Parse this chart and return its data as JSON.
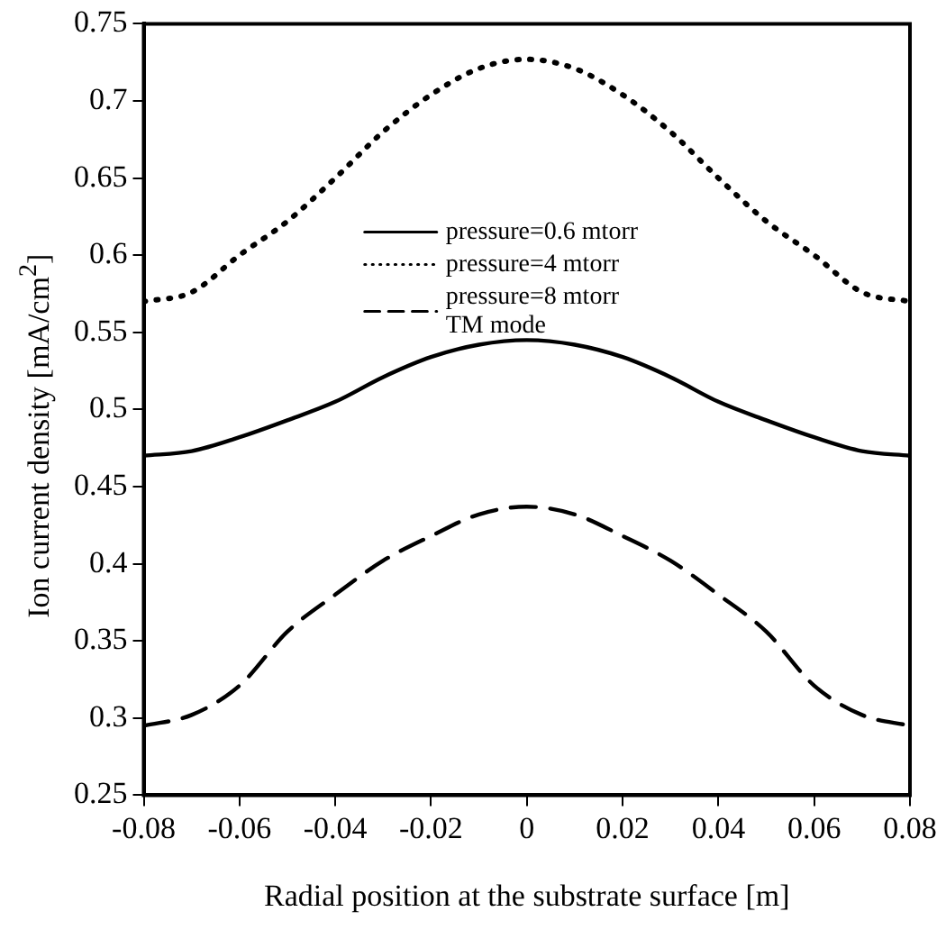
{
  "chart_data": {
    "type": "line",
    "xlabel": "Radial position at the substrate surface [m]",
    "ylabel": "Ion current density [mA/cm$^{2}$]",
    "x": [
      -0.08,
      -0.07,
      -0.06,
      -0.05,
      -0.04,
      -0.03,
      -0.02,
      -0.01,
      0,
      0.01,
      0.02,
      0.03,
      0.04,
      0.05,
      0.06,
      0.07,
      0.08
    ],
    "series": [
      {
        "name": "pressure=0.6 mtorr",
        "color": "#000000",
        "line_style": "solid",
        "values": [
          0.47,
          0.473,
          0.482,
          0.493,
          0.505,
          0.521,
          0.534,
          0.542,
          0.545,
          0.542,
          0.534,
          0.521,
          0.505,
          0.493,
          0.482,
          0.473,
          0.47
        ]
      },
      {
        "name": "pressure=4 mtorr",
        "color": "#000000",
        "line_style": "dotted",
        "values": [
          0.57,
          0.576,
          0.6,
          0.622,
          0.65,
          0.68,
          0.704,
          0.721,
          0.727,
          0.721,
          0.704,
          0.68,
          0.65,
          0.622,
          0.6,
          0.576,
          0.57
        ]
      },
      {
        "name": "pressure=8 mtorr\nTM mode",
        "color": "#000000",
        "line_style": "dashed",
        "values": [
          0.295,
          0.302,
          0.321,
          0.356,
          0.38,
          0.402,
          0.418,
          0.432,
          0.437,
          0.432,
          0.418,
          0.402,
          0.38,
          0.356,
          0.321,
          0.302,
          0.295
        ]
      }
    ],
    "xlim": [
      -0.08,
      0.08
    ],
    "xticks": [
      -0.08,
      -0.06,
      -0.04,
      -0.02,
      0,
      0.02,
      0.04,
      0.06,
      0.08
    ],
    "ylim": [
      0.25,
      0.75
    ],
    "yticks": [
      0.25,
      0.3,
      0.35,
      0.4,
      0.45,
      0.5,
      0.55,
      0.6,
      0.65,
      0.7,
      0.75
    ],
    "grid": false,
    "legend": "top",
    "marker": "none"
  }
}
